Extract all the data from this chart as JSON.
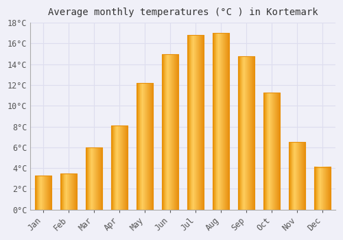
{
  "title": "Average monthly temperatures (°C ) in Kortemark",
  "months": [
    "Jan",
    "Feb",
    "Mar",
    "Apr",
    "May",
    "Jun",
    "Jul",
    "Aug",
    "Sep",
    "Oct",
    "Nov",
    "Dec"
  ],
  "values": [
    3.3,
    3.5,
    6.0,
    8.1,
    12.2,
    15.0,
    16.8,
    17.0,
    14.8,
    11.3,
    6.5,
    4.1
  ],
  "bar_color_center": "#FFBB33",
  "bar_color_edge": "#E8900A",
  "background_color": "#F0F0F8",
  "plot_bg_color": "#F0F0F8",
  "grid_color": "#DDDDEE",
  "ylim": [
    0,
    18
  ],
  "yticks": [
    0,
    2,
    4,
    6,
    8,
    10,
    12,
    14,
    16,
    18
  ],
  "title_fontsize": 10,
  "tick_fontsize": 8.5,
  "font_family": "monospace"
}
